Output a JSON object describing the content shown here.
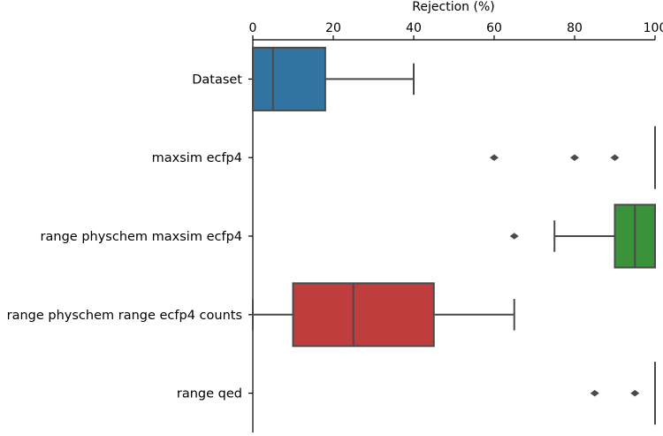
{
  "chart_data": {
    "type": "boxplot",
    "orientation": "horizontal",
    "xlabel": "Rejection (%)",
    "xaxis_position": "top",
    "xlim": [
      0,
      100
    ],
    "xticks": [
      0,
      20,
      40,
      60,
      80,
      100
    ],
    "grid": false,
    "legend": "none",
    "line_color": "#4a4a4a",
    "categories": [
      {
        "label": "Dataset",
        "color": "#3274a1",
        "whisker_low": 0,
        "q1": 0,
        "median": 5,
        "q3": 18,
        "whisker_high": 40,
        "outliers": []
      },
      {
        "label": "maxsim ecfp4",
        "color": "#3a923a",
        "whisker_low": 100,
        "q1": 100,
        "median": 100,
        "q3": 100,
        "whisker_high": 100,
        "outliers": [
          60,
          80,
          90
        ]
      },
      {
        "label": "range physchem maxsim ecfp4",
        "color": "#3a923a",
        "whisker_low": 75,
        "q1": 90,
        "median": 95,
        "q3": 100,
        "whisker_high": 100,
        "outliers": [
          65
        ]
      },
      {
        "label": "range physchem range ecfp4 counts",
        "color": "#c03d3e",
        "whisker_low": 0,
        "q1": 10,
        "median": 25,
        "q3": 45,
        "whisker_high": 65,
        "outliers": []
      },
      {
        "label": "range qed",
        "color": "#3a923a",
        "whisker_low": 100,
        "q1": 100,
        "median": 100,
        "q3": 100,
        "whisker_high": 100,
        "outliers": [
          85,
          95
        ]
      }
    ]
  }
}
